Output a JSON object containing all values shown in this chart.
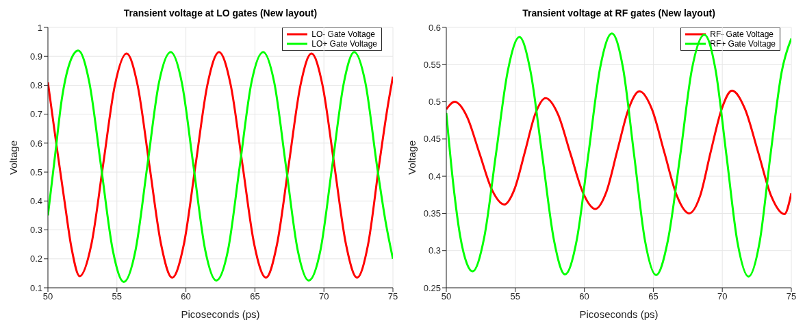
{
  "chart_data": [
    {
      "type": "line",
      "title": "Transient voltage at LO gates (New layout)",
      "xlabel": "Picoseconds (ps)",
      "ylabel": "Voltage",
      "xlim": [
        50,
        75
      ],
      "xticks": [
        50,
        55,
        60,
        65,
        70,
        75
      ],
      "ylim": [
        0.1,
        1
      ],
      "yticks": [
        0.1,
        0.2,
        0.3,
        0.4,
        0.5,
        0.6,
        0.7,
        0.8,
        0.9,
        1
      ],
      "grid": true,
      "legend": "top right",
      "line_style": "solid",
      "marker": "none",
      "series": [
        {
          "name": "LO- Gate Voltage",
          "color": "#ff0000",
          "x": [
            50,
            50.6,
            51.2,
            51.7,
            52.3,
            53.15,
            54.0,
            54.85,
            55.7,
            56.5,
            57.35,
            58.2,
            59.0,
            59.85,
            60.7,
            61.55,
            62.4,
            63.25,
            64.1,
            64.95,
            65.8,
            66.6,
            67.45,
            68.3,
            69.1,
            69.9,
            70.75,
            71.6,
            72.4,
            73.2,
            74.0,
            74.6,
            75
          ],
          "values": [
            0.81,
            0.6,
            0.4,
            0.24,
            0.14,
            0.25,
            0.525,
            0.8,
            0.91,
            0.8,
            0.525,
            0.25,
            0.135,
            0.25,
            0.525,
            0.8,
            0.915,
            0.8,
            0.525,
            0.25,
            0.135,
            0.25,
            0.525,
            0.8,
            0.91,
            0.8,
            0.525,
            0.25,
            0.135,
            0.25,
            0.525,
            0.72,
            0.83
          ]
        },
        {
          "name": "LO+ Gate Voltage",
          "color": "#00ff00",
          "x": [
            50,
            50.5,
            51.0,
            51.6,
            52.2,
            53.0,
            53.85,
            54.7,
            55.5,
            56.35,
            57.2,
            58.05,
            58.9,
            59.7,
            60.55,
            61.4,
            62.2,
            63.05,
            63.9,
            64.75,
            65.6,
            66.4,
            67.25,
            68.1,
            68.9,
            69.75,
            70.6,
            71.45,
            72.2,
            73.0,
            73.85,
            74.5,
            75
          ],
          "values": [
            0.35,
            0.55,
            0.75,
            0.88,
            0.92,
            0.81,
            0.52,
            0.23,
            0.12,
            0.23,
            0.52,
            0.81,
            0.915,
            0.81,
            0.52,
            0.23,
            0.125,
            0.23,
            0.52,
            0.81,
            0.915,
            0.81,
            0.52,
            0.23,
            0.125,
            0.23,
            0.52,
            0.81,
            0.915,
            0.81,
            0.52,
            0.32,
            0.2
          ]
        }
      ]
    },
    {
      "type": "line",
      "title": "Transient voltage at RF gates (New layout)",
      "xlabel": "Picoseconds (ps)",
      "ylabel": "Voltage",
      "xlim": [
        50,
        75
      ],
      "xticks": [
        50,
        55,
        60,
        65,
        70,
        75
      ],
      "ylim": [
        0.25,
        0.6
      ],
      "yticks": [
        0.25,
        0.3,
        0.35,
        0.4,
        0.45,
        0.5,
        0.55,
        0.6
      ],
      "grid": true,
      "legend": "top right",
      "line_style": "solid",
      "marker": "none",
      "series": [
        {
          "name": "RF- Gate Voltage",
          "color": "#ff0000",
          "x": [
            50,
            50.6,
            51.5,
            52.4,
            53.3,
            54.2,
            54.95,
            55.7,
            56.45,
            57.2,
            58.1,
            59.0,
            59.9,
            60.8,
            61.6,
            62.4,
            63.2,
            64.0,
            64.9,
            65.8,
            66.7,
            67.6,
            68.4,
            69.15,
            69.95,
            70.7,
            71.65,
            72.6,
            73.55,
            74.5,
            75
          ],
          "values": [
            0.49,
            0.5,
            0.48,
            0.431,
            0.382,
            0.362,
            0.383,
            0.433,
            0.484,
            0.505,
            0.483,
            0.43,
            0.378,
            0.356,
            0.379,
            0.435,
            0.49,
            0.514,
            0.49,
            0.432,
            0.374,
            0.35,
            0.374,
            0.432,
            0.49,
            0.515,
            0.49,
            0.432,
            0.373,
            0.349,
            0.377
          ]
        },
        {
          "name": "RF+ Gate Voltage",
          "color": "#00ff00",
          "x": [
            50,
            50.5,
            51.0,
            51.5,
            51.9,
            52.75,
            53.6,
            54.45,
            55.3,
            56.1,
            56.95,
            57.8,
            58.6,
            59.45,
            60.3,
            61.15,
            62.0,
            62.8,
            63.6,
            64.4,
            65.2,
            66.05,
            66.95,
            67.8,
            68.7,
            69.5,
            70.3,
            71.1,
            71.9,
            72.7,
            73.5,
            74.3,
            75
          ],
          "values": [
            0.485,
            0.39,
            0.32,
            0.282,
            0.272,
            0.318,
            0.43,
            0.541,
            0.587,
            0.541,
            0.428,
            0.314,
            0.268,
            0.314,
            0.43,
            0.546,
            0.592,
            0.546,
            0.43,
            0.313,
            0.267,
            0.313,
            0.428,
            0.544,
            0.59,
            0.544,
            0.428,
            0.311,
            0.265,
            0.311,
            0.43,
            0.54,
            0.585
          ]
        }
      ]
    }
  ]
}
